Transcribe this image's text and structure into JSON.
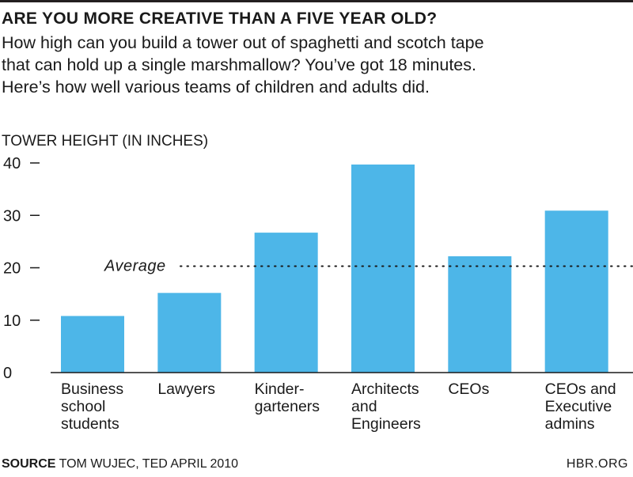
{
  "header": {
    "title": "ARE YOU MORE CREATIVE THAN A FIVE YEAR OLD?",
    "subtitle_lines": [
      "How high can you build a tower out of spaghetti and scotch tape",
      "that can hold up a single marshmallow? You’ve got 18 minutes.",
      "Here’s how well various teams of children and adults did."
    ]
  },
  "chart_data": {
    "type": "bar",
    "ylabel": "TOWER HEIGHT (IN INCHES)",
    "ylim": [
      0,
      40
    ],
    "yticks": [
      0,
      10,
      20,
      30,
      40
    ],
    "categories": [
      [
        "Business",
        "school",
        "students"
      ],
      [
        "Lawyers"
      ],
      [
        "Kinder-",
        "garteners"
      ],
      [
        "Architects",
        "and",
        "Engineers"
      ],
      [
        "CEOs"
      ],
      [
        "CEOs and",
        "Executive",
        "admins"
      ]
    ],
    "values": [
      10.8,
      15.2,
      26.7,
      39.7,
      22.2,
      30.9
    ],
    "average": {
      "label": "Average",
      "value": 20.3
    },
    "bar_color": "#4db6e8",
    "grid": false
  },
  "footer": {
    "source_label": "SOURCE",
    "source_text": " TOM WUJEC, TED APRIL 2010",
    "brand": "HBR.ORG"
  }
}
